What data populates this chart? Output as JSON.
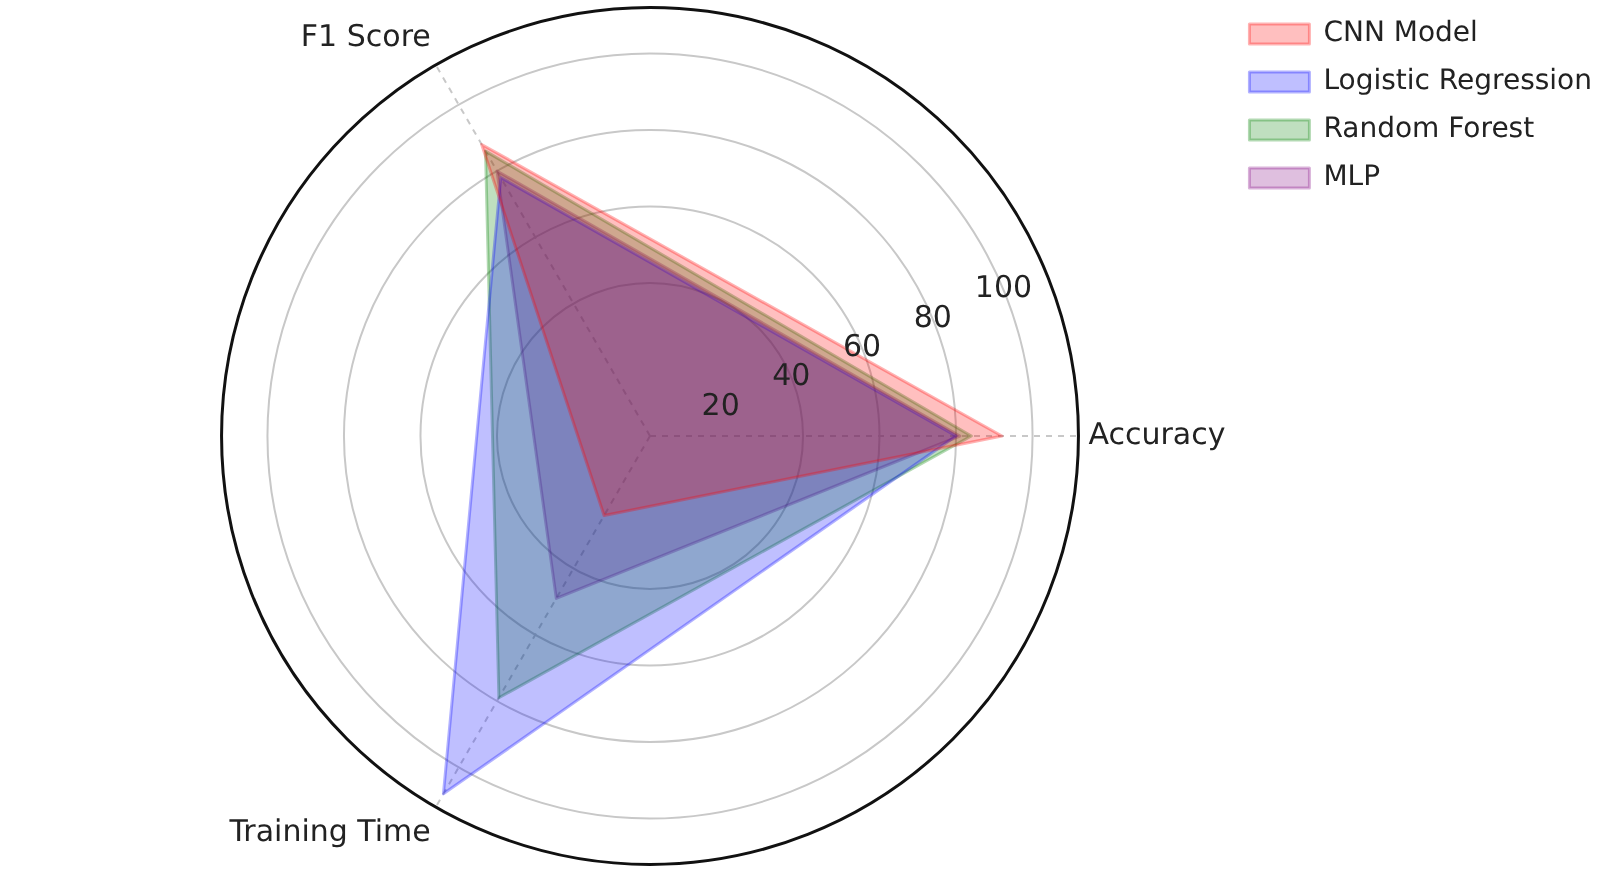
{
  "chart_data": {
    "type": "radar",
    "categories": [
      "Accuracy",
      "Training Time",
      "F1 Score"
    ],
    "series": [
      {
        "name": "CNN Model",
        "color": "#ff0000",
        "values": [
          92,
          24,
          88
        ]
      },
      {
        "name": "Logistic Regression",
        "color": "#0000ff",
        "values": [
          80,
          108,
          78
        ]
      },
      {
        "name": "Random Forest",
        "color": "#008000",
        "values": [
          84,
          79,
          86
        ]
      },
      {
        "name": "MLP",
        "color": "#800080",
        "values": [
          81,
          49,
          80
        ]
      }
    ],
    "ylim": [
      0,
      112
    ],
    "yticks": [
      20,
      40,
      60,
      80,
      100
    ],
    "grid": true,
    "legend": "top right",
    "marker": "none",
    "line_style": "solid"
  }
}
